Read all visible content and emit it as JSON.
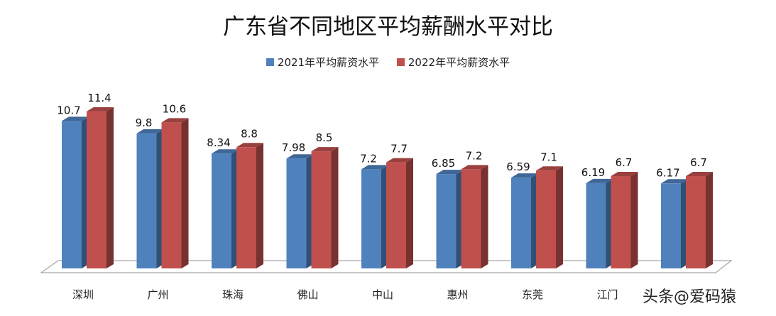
{
  "chart_data": {
    "type": "bar",
    "title": "广东省不同地区平均薪酬水平对比",
    "categories": [
      "深圳",
      "广州",
      "珠海",
      "佛山",
      "中山",
      "惠州",
      "东莞",
      "江门",
      ""
    ],
    "series": [
      {
        "name": "2021年平均薪资水平",
        "color": "#4F81BD",
        "values": [
          10.7,
          9.8,
          8.34,
          7.98,
          7.2,
          6.85,
          6.59,
          6.19,
          6.17
        ]
      },
      {
        "name": "2022年平均薪资水平",
        "color": "#C0504D",
        "values": [
          11.4,
          10.6,
          8.8,
          8.5,
          7.7,
          7.2,
          7.1,
          6.7,
          6.7
        ]
      }
    ],
    "xlabel": "",
    "ylabel": "",
    "ylim": [
      0,
      12
    ],
    "grid": false,
    "legend": "top",
    "style": "3d-column"
  },
  "watermark": "头条@爱码猿"
}
